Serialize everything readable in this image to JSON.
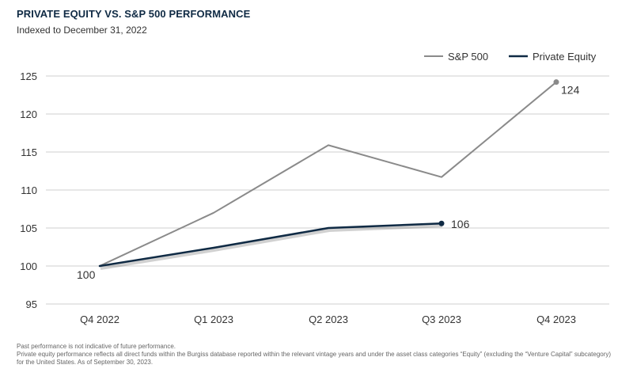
{
  "title": "PRIVATE EQUITY VS. S&P 500 PERFORMANCE",
  "subtitle": "Indexed to December 31, 2022",
  "notes": [
    "Past performance is not indicative of future performance.",
    "Private equity performance reflects all direct funds within the Burgiss database reported within the relevant vintage years and under the asset class categories “Equity” (excluding the “Venture Capital” subcategory) for the United States. As of September 30, 2023."
  ],
  "colors": {
    "sp500": "#8a8a8a",
    "pe": "#0f2a44",
    "grid": "#cfcfcf"
  },
  "chart_data": {
    "type": "line",
    "title": "PRIVATE EQUITY VS. S&P 500 PERFORMANCE",
    "subtitle": "Indexed to December 31, 2022",
    "categories": [
      "Q4 2022",
      "Q1 2023",
      "Q2 2023",
      "Q3 2023",
      "Q4 2023"
    ],
    "ylim": [
      95,
      125
    ],
    "yticks": [
      95,
      100,
      105,
      110,
      115,
      120,
      125
    ],
    "grid": true,
    "legend": "top-right",
    "series": [
      {
        "name": "S&P 500",
        "values": [
          100,
          107,
          115.9,
          111.7,
          124.2
        ],
        "end_label": "124",
        "start_label": ""
      },
      {
        "name": "Private Equity",
        "values": [
          100,
          102.4,
          105,
          105.6,
          null
        ],
        "end_label": "106",
        "start_label": "100"
      }
    ]
  }
}
